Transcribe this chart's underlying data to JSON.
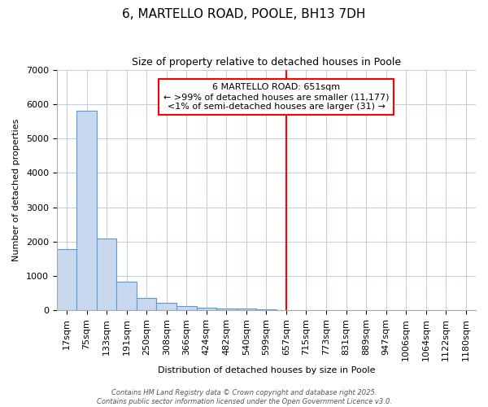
{
  "title": "6, MARTELLO ROAD, POOLE, BH13 7DH",
  "subtitle": "Size of property relative to detached houses in Poole",
  "xlabel": "Distribution of detached houses by size in Poole",
  "ylabel": "Number of detached properties",
  "bar_color": "#c8d8ee",
  "bar_edge_color": "#5b9bd5",
  "background_color": "#ffffff",
  "plot_bg_color": "#ffffff",
  "grid_color": "#c0cce0",
  "categories": [
    "17sqm",
    "75sqm",
    "133sqm",
    "191sqm",
    "250sqm",
    "308sqm",
    "366sqm",
    "424sqm",
    "482sqm",
    "540sqm",
    "599sqm",
    "657sqm",
    "715sqm",
    "773sqm",
    "831sqm",
    "889sqm",
    "947sqm",
    "1006sqm",
    "1064sqm",
    "1122sqm",
    "1180sqm"
  ],
  "values": [
    1780,
    5800,
    2080,
    840,
    360,
    210,
    115,
    85,
    65,
    50,
    35,
    0,
    0,
    0,
    0,
    0,
    0,
    0,
    0,
    0,
    0
  ],
  "red_line_index": 11,
  "annotation_title": "6 MARTELLO ROAD: 651sqm",
  "annotation_line1": "← >99% of detached houses are smaller (11,177)",
  "annotation_line2": "<1% of semi-detached houses are larger (31) →",
  "annotation_box_color": "white",
  "annotation_border_color": "red",
  "footer1": "Contains HM Land Registry data © Crown copyright and database right 2025.",
  "footer2": "Contains public sector information licensed under the Open Government Licence v3.0.",
  "ylim": [
    0,
    7000
  ],
  "yticks": [
    0,
    1000,
    2000,
    3000,
    4000,
    5000,
    6000,
    7000
  ],
  "title_fontsize": 11,
  "subtitle_fontsize": 9,
  "axis_label_fontsize": 8,
  "tick_fontsize": 8,
  "annotation_fontsize": 8,
  "footer_fontsize": 6
}
